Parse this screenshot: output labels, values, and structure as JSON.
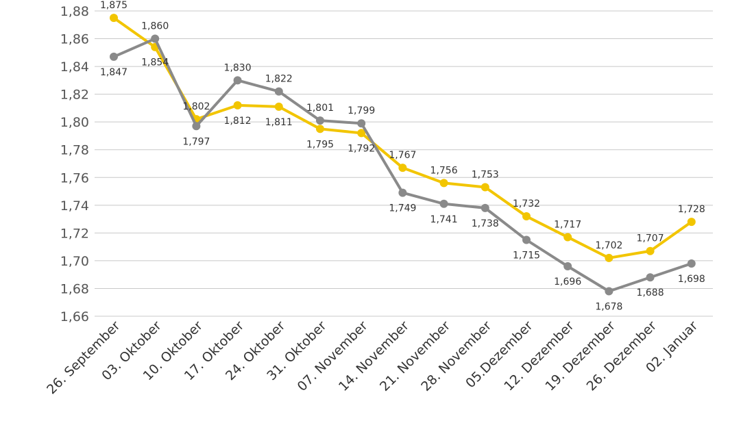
{
  "chart_data": {
    "type": "line",
    "title": "",
    "xlabel": "",
    "ylabel": "",
    "ylim": [
      1.66,
      1.88
    ],
    "yticks": [
      "1,66",
      "1,68",
      "1,70",
      "1,72",
      "1,74",
      "1,76",
      "1,78",
      "1,80",
      "1,82",
      "1,84",
      "1,86",
      "1,88"
    ],
    "grid": true,
    "legend": "none",
    "categories": [
      "26. September",
      "03. Oktober",
      "10. Oktober",
      "17. Oktober",
      "24. Oktober",
      "31. Oktober",
      "07. November",
      "14. November",
      "21. November",
      "28. November",
      "05.Dezember",
      "12. Dezember",
      "19. Dezember",
      "26. Dezember",
      "02. Januar"
    ],
    "series": [
      {
        "color": "#f2c500",
        "values": [
          1.875,
          1.854,
          1.802,
          1.812,
          1.811,
          1.795,
          1.792,
          1.767,
          1.756,
          1.753,
          1.732,
          1.717,
          1.702,
          1.707,
          1.728
        ],
        "labels": [
          "1,875",
          "1,854",
          "1,802",
          "1,812",
          "1,811",
          "1,795",
          "1,792",
          "1,767",
          "1,756",
          "1,753",
          "1,732",
          "1,717",
          "1,702",
          "1,707",
          "1,728"
        ]
      },
      {
        "color": "#8a8a8a",
        "values": [
          1.847,
          1.86,
          1.797,
          1.83,
          1.822,
          1.801,
          1.799,
          1.749,
          1.741,
          1.738,
          1.715,
          1.696,
          1.678,
          1.688,
          1.698
        ],
        "labels": [
          "1,847",
          "1,860",
          "1,797",
          "1,830",
          "1,822",
          "1,801",
          "1,799",
          "1,749",
          "1,741",
          "1,738",
          "1,715",
          "1,696",
          "1,678",
          "1,688",
          "1,698"
        ]
      }
    ]
  }
}
